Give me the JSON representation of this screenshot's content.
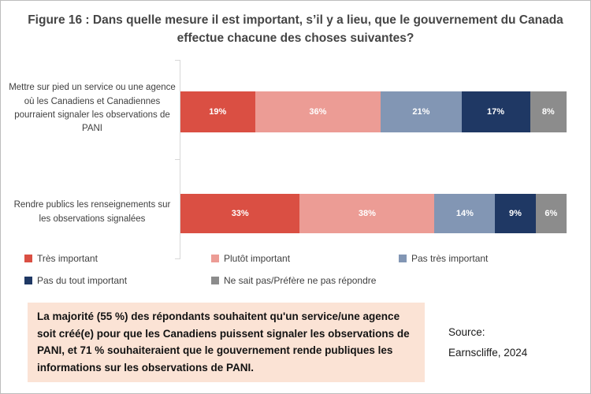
{
  "title": "Figure 16 : Dans quelle mesure il est important, s’il y a lieu, que le gouvernement du Canada effectue chacune des choses suivantes?",
  "chart_data": {
    "type": "bar",
    "orientation": "horizontal",
    "stacked": true,
    "grid": false,
    "legend_position": "bottom",
    "xlim": [
      0,
      100
    ],
    "categories": [
      "Mettre sur pied un service ou une agence où les Canadiens et Canadiennes pourraient signaler les observations de PANI",
      "Rendre publics les renseignements sur les observations signalées"
    ],
    "series": [
      {
        "name": "Très important",
        "color": "#DA4F43",
        "values": [
          19,
          33
        ]
      },
      {
        "name": "Plutôt important",
        "color": "#EC9C95",
        "values": [
          36,
          38
        ]
      },
      {
        "name": "Pas très important",
        "color": "#8296B4",
        "values": [
          21,
          14
        ]
      },
      {
        "name": "Pas du tout important",
        "color": "#1F3864",
        "values": [
          17,
          9
        ]
      },
      {
        "name": "Ne sait pas/Préfère ne pas répondre",
        "color": "#8C8C8C",
        "values": [
          8,
          6
        ]
      }
    ],
    "value_labels": [
      [
        "19%",
        "36%",
        "21%",
        "17%",
        "8%"
      ],
      [
        "33%",
        "38%",
        "14%",
        "9%",
        "6%"
      ]
    ]
  },
  "callout": {
    "text": "La majorité (55 %) des répondants souhaitent qu'un service/une agence soit créé(e) pour que les Canadiens puissent signaler les observations de PANI, et 71 % souhaiteraient que le gouvernement rende publiques les informations sur les observations de PANI.",
    "background": "#FBE3D5"
  },
  "source": {
    "line1": "Source:",
    "line2": "Earnscliffe, 2024"
  }
}
